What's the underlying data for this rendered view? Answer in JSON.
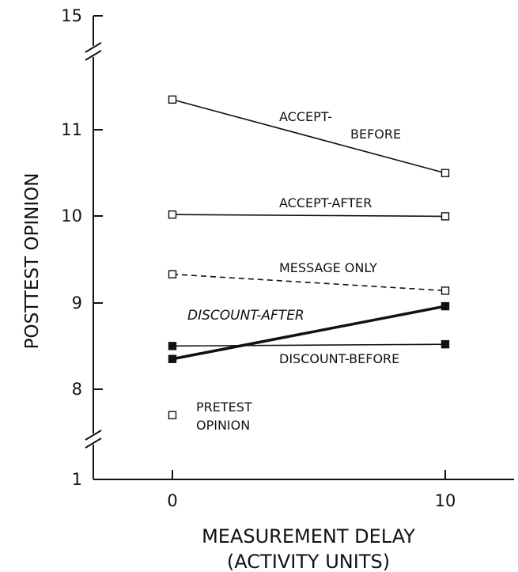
{
  "chart_data": {
    "type": "line",
    "xlabel_line1": "MEASUREMENT DELAY",
    "xlabel_line2": "(ACTIVITY UNITS)",
    "ylabel": "POSTTEST OPINION",
    "x_ticks": [
      "0",
      "10"
    ],
    "y_ticks": [
      "15",
      "11",
      "10",
      "9",
      "8",
      "1"
    ],
    "y_axis_breaks": true,
    "grid": false,
    "series": [
      {
        "name": "ACCEPT-BEFORE",
        "x": [
          0,
          10
        ],
        "y": [
          11.35,
          10.5
        ],
        "marker": "open-square",
        "line": "solid"
      },
      {
        "name": "ACCEPT-AFTER",
        "x": [
          0,
          10
        ],
        "y": [
          10.02,
          10.0
        ],
        "marker": "open-square",
        "line": "solid"
      },
      {
        "name": "MESSAGE ONLY",
        "x": [
          0,
          10
        ],
        "y": [
          9.33,
          9.14
        ],
        "marker": "open-square",
        "line": "dashed"
      },
      {
        "name": "DISCOUNT-AFTER",
        "x": [
          0,
          10
        ],
        "y": [
          8.35,
          8.96
        ],
        "marker": "filled-square",
        "line": "bold"
      },
      {
        "name": "DISCOUNT-BEFORE",
        "x": [
          0,
          10
        ],
        "y": [
          8.5,
          8.52
        ],
        "marker": "filled-square",
        "line": "solid"
      }
    ],
    "points": [
      {
        "name": "PRETEST OPINION",
        "x": 0,
        "y": 7.7,
        "marker": "open-square"
      }
    ],
    "annotations": {
      "accept_before_1": "ACCEPT-",
      "accept_before_2": "BEFORE",
      "accept_after": "ACCEPT-AFTER",
      "message_only": "MESSAGE ONLY",
      "discount_after": "DISCOUNT-AFTER",
      "discount_before": "DISCOUNT-BEFORE",
      "pretest_1": "PRETEST",
      "pretest_2": "OPINION"
    }
  }
}
